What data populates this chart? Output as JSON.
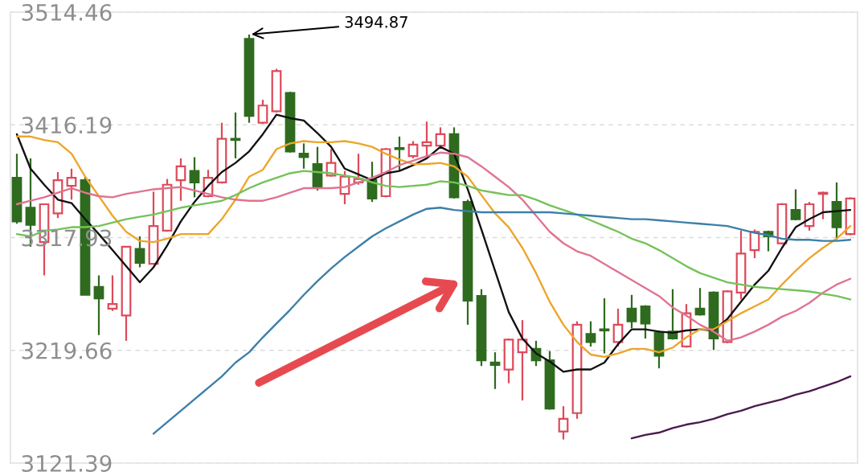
{
  "chart_data": {
    "type": "candlestick",
    "categories": [
      null,
      null,
      null,
      null,
      null,
      null,
      null,
      null,
      null,
      null,
      null,
      null,
      null,
      null,
      null,
      null,
      null,
      null,
      null,
      null,
      null,
      null,
      null,
      null,
      null,
      null,
      null,
      null,
      null,
      null,
      null,
      null,
      null,
      null,
      null,
      null,
      null,
      null,
      null,
      null,
      null,
      null,
      null,
      null,
      null,
      null,
      null,
      null,
      null,
      null,
      null,
      null,
      null,
      null,
      null,
      null,
      null,
      null,
      null,
      null,
      null,
      null
    ],
    "ohlc": [
      [
        3370,
        3391,
        3330,
        3332
      ],
      [
        3344,
        3387,
        3310,
        3329
      ],
      [
        3314,
        3347,
        3285,
        3347
      ],
      [
        3339,
        3375,
        3335,
        3368
      ],
      [
        3363,
        3378,
        3351,
        3370
      ],
      [
        3368,
        3371,
        3268,
        3268
      ],
      [
        3275,
        3285,
        3233,
        3265
      ],
      [
        3256,
        3285,
        3254,
        3260
      ],
      [
        3250,
        3310,
        3228,
        3310
      ],
      [
        3308,
        3319,
        3292,
        3296
      ],
      [
        3295,
        3358,
        3295,
        3328
      ],
      [
        3324,
        3369,
        3323,
        3364
      ],
      [
        3368,
        3387,
        3350,
        3380
      ],
      [
        3376,
        3388,
        3353,
        3366
      ],
      [
        3354,
        3377,
        3353,
        3370
      ],
      [
        3366,
        3418,
        3365,
        3404
      ],
      [
        3404,
        3427,
        3387,
        3403
      ],
      [
        3491,
        3494.87,
        3418,
        3424
      ],
      [
        3418,
        3438,
        3417,
        3433
      ],
      [
        3428,
        3465,
        3427,
        3463
      ],
      [
        3444,
        3445,
        3392,
        3393
      ],
      [
        3391,
        3400,
        3378,
        3388
      ],
      [
        3382,
        3397,
        3359,
        3362
      ],
      [
        3372,
        3395,
        3371,
        3383
      ],
      [
        3356,
        3376,
        3347,
        3371
      ],
      [
        3366,
        3391,
        3364,
        3369
      ],
      [
        3368,
        3384,
        3349,
        3352
      ],
      [
        3354,
        3396,
        3353,
        3395
      ],
      [
        3396,
        3406,
        3376,
        3395
      ],
      [
        3389,
        3402,
        3387,
        3399
      ],
      [
        3398,
        3419,
        3389,
        3401
      ],
      [
        3398,
        3414,
        3396,
        3408
      ],
      [
        3408,
        3414,
        3352,
        3353
      ],
      [
        3349,
        3351,
        3242,
        3263
      ],
      [
        3267,
        3273,
        3206,
        3211
      ],
      [
        3209,
        3218,
        3186,
        3207
      ],
      [
        3203,
        3230,
        3191,
        3229
      ],
      [
        3218,
        3246,
        3176,
        3229
      ],
      [
        3221,
        3228,
        3206,
        3211
      ],
      [
        3211,
        3219,
        3168,
        3169
      ],
      [
        3149,
        3171,
        3142,
        3160
      ],
      [
        3165,
        3245,
        3160,
        3242
      ],
      [
        3234,
        3245,
        3223,
        3227
      ],
      [
        3238,
        3265,
        3217,
        3237
      ],
      [
        3227,
        3256,
        3223,
        3242
      ],
      [
        3256,
        3268,
        3239,
        3245
      ],
      [
        3258,
        3259,
        3230,
        3243
      ],
      [
        3235,
        3237,
        3204,
        3215
      ],
      [
        3236,
        3273,
        3229,
        3230
      ],
      [
        3223,
        3260,
        3222,
        3252
      ],
      [
        3256,
        3274,
        3250,
        3251
      ],
      [
        3270,
        3271,
        3220,
        3230
      ],
      [
        3227,
        3272,
        3226,
        3271
      ],
      [
        3270,
        3324,
        3264,
        3304
      ],
      [
        3307,
        3325,
        3300,
        3323
      ],
      [
        3323,
        3324,
        3306,
        3319
      ],
      [
        3313,
        3348,
        3312,
        3347
      ],
      [
        3342,
        3360,
        3333,
        3334
      ],
      [
        3328,
        3349,
        3324,
        3347
      ],
      [
        3356,
        3358,
        3334,
        3357
      ],
      [
        3349,
        3366,
        3316,
        3327
      ],
      [
        3321,
        3353,
        3320,
        3352
      ]
    ],
    "colors": [
      "#2f6b1f",
      "#2f6b1f",
      "#dd4a5a",
      "#dd4a5a",
      "#dd4a5a",
      "#2f6b1f",
      "#2f6b1f",
      "#dd4a5a",
      "#dd4a5a",
      "#2f6b1f",
      "#dd4a5a",
      "#dd4a5a",
      "#dd4a5a",
      "#2f6b1f",
      "#dd4a5a",
      "#dd4a5a",
      "#2f6b1f",
      "#2f6b1f",
      "#dd4a5a",
      "#dd4a5a",
      "#2f6b1f",
      "#2f6b1f",
      "#2f6b1f",
      "#dd4a5a",
      "#dd4a5a",
      "#dd4a5a",
      "#2f6b1f",
      "#dd4a5a",
      "#2f6b1f",
      "#dd4a5a",
      "#dd4a5a",
      "#dd4a5a",
      "#2f6b1f",
      "#2f6b1f",
      "#2f6b1f",
      "#2f6b1f",
      "#dd4a5a",
      "#dd4a5a",
      "#2f6b1f",
      "#2f6b1f",
      "#dd4a5a",
      "#dd4a5a",
      "#2f6b1f",
      "#2f6b1f",
      "#dd4a5a",
      "#2f6b1f",
      "#2f6b1f",
      "#2f6b1f",
      "#2f6b1f",
      "#dd4a5a",
      "#2f6b1f",
      "#2f6b1f",
      "#dd4a5a",
      "#dd4a5a",
      "#dd4a5a",
      "#2f6b1f",
      "#dd4a5a",
      "#2f6b1f",
      "#dd4a5a",
      "#dd4a5a",
      "#2f6b1f",
      "#dd4a5a"
    ],
    "series": [
      {
        "type": "line",
        "color": "#111111",
        "values": [
          3408,
          3378,
          3364,
          3351,
          3348,
          3334,
          3321,
          3307,
          3293,
          3279,
          3292,
          3311,
          3332,
          3349,
          3363,
          3375,
          3383,
          3393,
          3408,
          3425,
          3422,
          3420,
          3409,
          3397,
          3378,
          3373,
          3368,
          3374,
          3376,
          3381,
          3387,
          3397,
          3391,
          3360,
          3325,
          3289,
          3253,
          3230,
          3217,
          3210,
          3201,
          3203,
          3203,
          3209,
          3225,
          3238,
          3238,
          3236,
          3235,
          3237,
          3238,
          3237,
          3247,
          3262,
          3277,
          3289,
          3309,
          3327,
          3334,
          3340,
          3341,
          3342
        ]
      },
      {
        "type": "line",
        "color": "#eda52a",
        "values": [
          3406,
          3406,
          3403,
          3401,
          3391,
          3371,
          3354,
          3337,
          3323,
          3315,
          3314,
          3317,
          3321,
          3321,
          3321,
          3334,
          3351,
          3371,
          3377,
          3395,
          3400,
          3402,
          3401,
          3401,
          3402,
          3400,
          3397,
          3391,
          3386,
          3382,
          3382,
          3383,
          3380,
          3371,
          3355,
          3339,
          3327,
          3309,
          3287,
          3262,
          3242,
          3227,
          3216,
          3214,
          3217,
          3221,
          3221,
          3218,
          3222,
          3231,
          3238,
          3238,
          3245,
          3252,
          3258,
          3264,
          3277,
          3289,
          3300,
          3309,
          3317,
          3328
        ]
      },
      {
        "type": "line",
        "color": "#e07390",
        "values": [
          3347,
          3350,
          3353,
          3357,
          3361,
          3357,
          3354,
          3353,
          3356,
          3358,
          3360,
          3361,
          3362,
          3359,
          3356,
          3353,
          3351,
          3350,
          3350,
          3353,
          3357,
          3361,
          3361,
          3361,
          3362,
          3366,
          3370,
          3375,
          3381,
          3385,
          3389,
          3392,
          3391,
          3388,
          3380,
          3371,
          3362,
          3351,
          3337,
          3323,
          3313,
          3306,
          3302,
          3295,
          3288,
          3281,
          3274,
          3267,
          3257,
          3250,
          3242,
          3236,
          3228,
          3231,
          3236,
          3242,
          3249,
          3254,
          3261,
          3270,
          3277,
          3282
        ]
      },
      {
        "type": "line",
        "color": "#74c25a",
        "values": [
          3321,
          3319,
          3324,
          3325,
          3327,
          3327,
          3328,
          3331,
          3334,
          3336,
          3338,
          3341,
          3344,
          3346,
          3348,
          3350,
          3355,
          3361,
          3366,
          3370,
          3374,
          3376,
          3375,
          3374,
          3372,
          3370,
          3366,
          3363,
          3362,
          3363,
          3364,
          3367,
          3366,
          3363,
          3359,
          3357,
          3355,
          3355,
          3351,
          3346,
          3342,
          3338,
          3333,
          3328,
          3323,
          3317,
          3313,
          3307,
          3300,
          3293,
          3287,
          3283,
          3279,
          3277,
          3275,
          3274,
          3273,
          3272,
          3271,
          3269,
          3267,
          3264
        ]
      },
      {
        "type": "line",
        "color": "#3c7fa8",
        "values": [
          null,
          null,
          null,
          null,
          null,
          null,
          null,
          null,
          null,
          null,
          3147,
          3157,
          3167,
          3177,
          3187,
          3197,
          3209,
          3218,
          3231,
          3243,
          3255,
          3268,
          3280,
          3291,
          3301,
          3310,
          3319,
          3326,
          3332,
          3338,
          3343,
          3344,
          3342,
          3341,
          3340,
          3340,
          3340,
          3340,
          3340,
          3340,
          3339,
          3338,
          3337,
          3336,
          3335,
          3334,
          3334,
          3333,
          3332,
          3331,
          3330,
          3329,
          3328,
          3325,
          3322,
          3320,
          3317,
          3316,
          3316,
          3315,
          3315,
          3316
        ]
      },
      {
        "type": "line",
        "color": "#4a1a4e",
        "values": [
          null,
          null,
          null,
          null,
          null,
          null,
          null,
          null,
          null,
          null,
          null,
          null,
          null,
          null,
          null,
          null,
          null,
          null,
          null,
          null,
          null,
          null,
          null,
          null,
          null,
          null,
          null,
          null,
          null,
          null,
          null,
          null,
          null,
          null,
          null,
          null,
          null,
          null,
          null,
          null,
          null,
          null,
          null,
          null,
          null,
          3143,
          3146,
          3148,
          3152,
          3155,
          3157,
          3160,
          3164,
          3167,
          3171,
          3174,
          3177,
          3181,
          3184,
          3188,
          3192,
          3197
        ]
      }
    ],
    "ylim": [
      3121.39,
      3514.46
    ],
    "yticks": [
      3121.39,
      3219.66,
      3317.93,
      3416.19,
      3514.46
    ],
    "tick_labels": "y",
    "grid": "y",
    "annotations": [
      "3494.87"
    ]
  }
}
